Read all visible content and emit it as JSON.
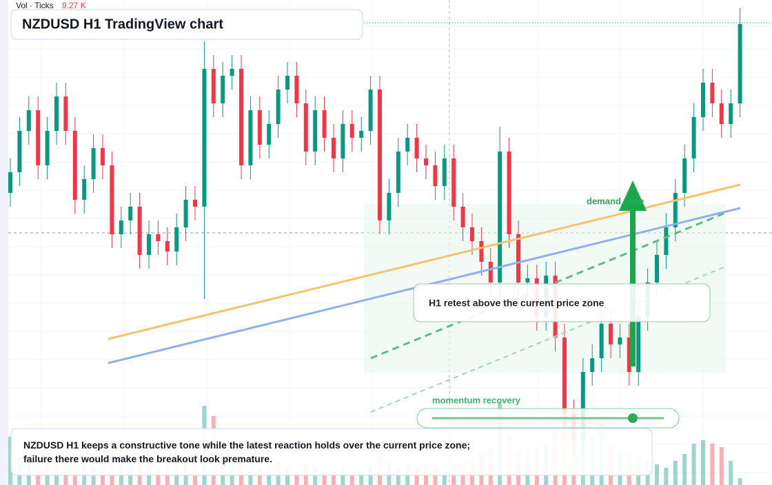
{
  "chart_data": {
    "type": "candlestick",
    "title": "NZDUSD H1 TradingView chart",
    "volume_label": "Vol · Ticks",
    "volume_value": "9.27 K",
    "annotations": [
      "demand zone",
      "H1 retest above the current price zone",
      "momentum recovery"
    ],
    "note": "NZDUSD H1 keeps a constructive tone while the latest reaction holds over the current price zone; failure there would make the breakout look premature.",
    "up_color": "#089981",
    "down_color": "#f23645",
    "ylim": [
      0,
      704
    ],
    "open": [
      424,
      454,
      514,
      544,
      464,
      514,
      564,
      514,
      414,
      444,
      489,
      464,
      364,
      384,
      404,
      334,
      364,
      354,
      339,
      374,
      414,
      404,
      604,
      554,
      594,
      604,
      464,
      544,
      494,
      524,
      574,
      594,
      554,
      484,
      544,
      504,
      474,
      524,
      504,
      514,
      574,
      384,
      424,
      484,
      504,
      474,
      464,
      434,
      474,
      404,
      374,
      354,
      324,
      294,
      484,
      364,
      294,
      300,
      244,
      304,
      214,
      104,
      64,
      164,
      184,
      234,
      204,
      214,
      164,
      244,
      294,
      334,
      374,
      424,
      474,
      534,
      584,
      554,
      524,
      554
    ],
    "high": [
      474,
      534,
      564,
      564,
      534,
      584,
      584,
      534,
      464,
      509,
      509,
      484,
      404,
      424,
      424,
      384,
      384,
      374,
      394,
      434,
      434,
      644,
      624,
      614,
      624,
      624,
      564,
      564,
      544,
      594,
      614,
      614,
      574,
      564,
      564,
      524,
      544,
      544,
      534,
      594,
      594,
      444,
      504,
      524,
      524,
      494,
      484,
      494,
      494,
      424,
      394,
      374,
      344,
      520,
      504,
      384,
      320,
      320,
      324,
      324,
      234,
      124,
      184,
      204,
      254,
      254,
      234,
      234,
      264,
      314,
      354,
      394,
      444,
      494,
      554,
      604,
      604,
      574,
      574,
      692
    ],
    "low": [
      404,
      434,
      494,
      444,
      444,
      494,
      494,
      394,
      394,
      424,
      444,
      344,
      344,
      364,
      314,
      314,
      334,
      319,
      319,
      354,
      384,
      270,
      534,
      534,
      574,
      444,
      444,
      474,
      474,
      504,
      554,
      534,
      464,
      464,
      484,
      454,
      454,
      484,
      484,
      494,
      364,
      364,
      404,
      464,
      454,
      444,
      414,
      414,
      384,
      354,
      334,
      304,
      274,
      274,
      344,
      274,
      274,
      224,
      224,
      194,
      84,
      40,
      44,
      144,
      164,
      184,
      184,
      144,
      144,
      224,
      274,
      314,
      354,
      404,
      454,
      514,
      534,
      504,
      504,
      534
    ],
    "close": [
      454,
      514,
      544,
      464,
      514,
      564,
      514,
      414,
      444,
      489,
      464,
      364,
      384,
      404,
      334,
      364,
      354,
      339,
      374,
      414,
      404,
      604,
      554,
      594,
      604,
      464,
      544,
      494,
      524,
      574,
      594,
      554,
      484,
      544,
      504,
      474,
      524,
      504,
      514,
      574,
      384,
      424,
      484,
      504,
      474,
      464,
      434,
      474,
      404,
      374,
      354,
      324,
      294,
      484,
      364,
      294,
      300,
      244,
      304,
      214,
      104,
      64,
      164,
      184,
      234,
      204,
      214,
      164,
      244,
      294,
      334,
      374,
      424,
      474,
      534,
      584,
      554,
      524,
      554,
      669
    ],
    "volume": [
      70,
      40,
      30,
      25,
      30,
      35,
      40,
      45,
      30,
      25,
      30,
      50,
      35,
      30,
      40,
      30,
      25,
      30,
      35,
      40,
      45,
      115,
      100,
      40,
      35,
      60,
      30,
      25,
      30,
      35,
      25,
      20,
      30,
      25,
      20,
      20,
      25,
      20,
      20,
      25,
      45,
      35,
      25,
      30,
      25,
      30,
      25,
      20,
      30,
      30,
      35,
      45,
      55,
      120,
      70,
      50,
      45,
      55,
      60,
      80,
      110,
      100,
      105,
      70,
      90,
      60,
      50,
      45,
      40,
      35,
      30,
      25,
      35,
      45,
      60,
      65,
      60,
      55,
      35,
      10
    ]
  }
}
